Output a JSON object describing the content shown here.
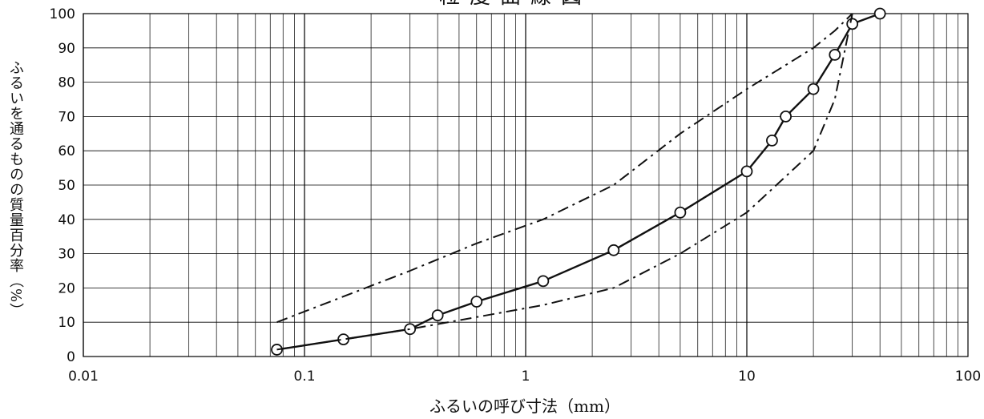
{
  "chart_data": {
    "type": "line",
    "title": "粒度曲線図",
    "xlabel": "ふるいの呼び寸法（mm）",
    "ylabel": "ふるいを通るものの質量百分率（%）",
    "xscale": "log",
    "xlim": [
      0.01,
      100
    ],
    "ylim": [
      0,
      100
    ],
    "grid": true,
    "x_tick_labels": [
      "0.01",
      "0.1",
      "1",
      "10",
      "100"
    ],
    "y_tick_labels": [
      "0",
      "10",
      "20",
      "30",
      "40",
      "50",
      "60",
      "70",
      "80",
      "90",
      "100"
    ],
    "series": [
      {
        "style": "solid-markers",
        "x": [
          0.075,
          0.15,
          0.3,
          0.4,
          0.6,
          1.2,
          2.5,
          5,
          10,
          13,
          15,
          20,
          25,
          30,
          40
        ],
        "values": [
          2,
          5,
          8,
          12,
          16,
          22,
          31,
          42,
          54,
          63,
          70,
          78,
          88,
          97,
          100
        ]
      },
      {
        "style": "dash-dot",
        "x": [
          0.075,
          0.3,
          0.6,
          1.2,
          2.5,
          5,
          10,
          20,
          25,
          30
        ],
        "values": [
          10,
          25,
          33,
          40,
          50,
          65,
          78,
          90,
          95,
          100
        ]
      },
      {
        "style": "dash-dot",
        "x": [
          0.075,
          0.3,
          1.2,
          2.5,
          5,
          10,
          20,
          25,
          30
        ],
        "values": [
          2,
          8,
          15,
          20,
          30,
          42,
          60,
          75,
          100
        ]
      }
    ]
  }
}
